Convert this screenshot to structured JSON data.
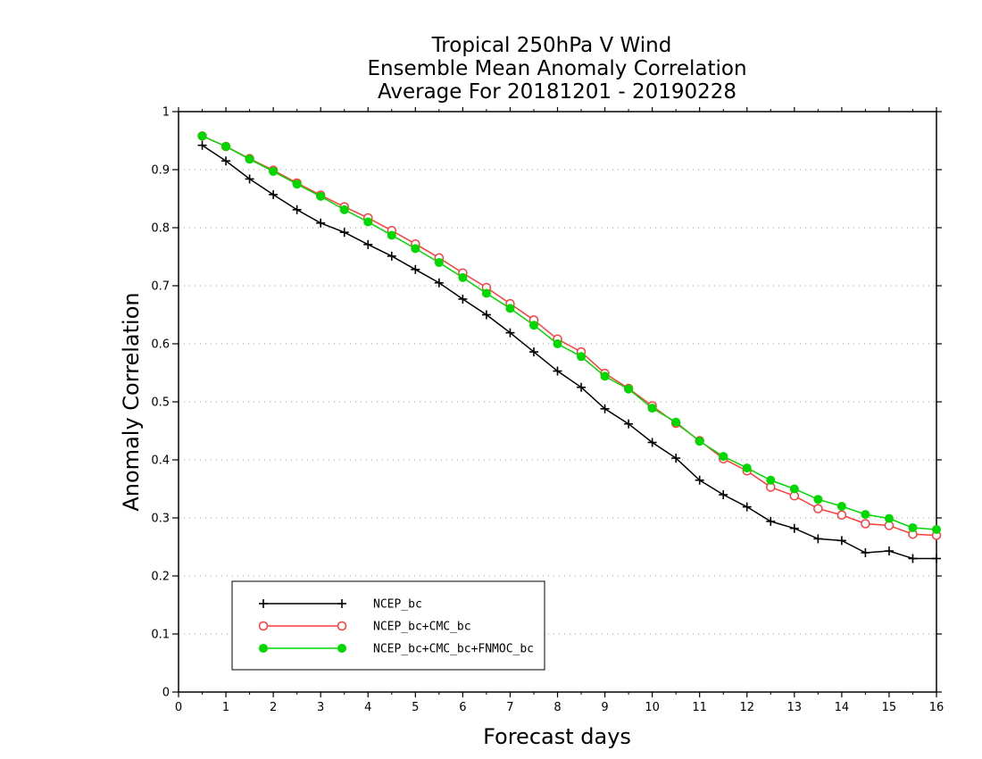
{
  "chart_data": {
    "type": "line",
    "title": [
      "Tropical 250hPa V Wind",
      "Ensemble Mean Anomaly Correlation",
      "Average For 20181201 - 20190228"
    ],
    "xlabel": "Forecast days",
    "ylabel": "Anomaly Correlation",
    "xlim": [
      0,
      16
    ],
    "ylim": [
      0,
      1
    ],
    "xticks": [
      "0",
      "1",
      "2",
      "3",
      "4",
      "5",
      "6",
      "7",
      "8",
      "9",
      "10",
      "11",
      "12",
      "13",
      "14",
      "15",
      "16"
    ],
    "yticks": [
      "0",
      "0.1",
      "0.2",
      "0.3",
      "0.4",
      "0.5",
      "0.6",
      "0.7",
      "0.8",
      "0.9",
      "1"
    ],
    "grid": "horizontal dotted",
    "legend_position": "bottom-left",
    "x": [
      0.5,
      1,
      1.5,
      2,
      2.5,
      3,
      3.5,
      4,
      4.5,
      5,
      5.5,
      6,
      6.5,
      7,
      7.5,
      8,
      8.5,
      9,
      9.5,
      10,
      10.5,
      11,
      11.5,
      12,
      12.5,
      13,
      13.5,
      14,
      14.5,
      15,
      15.5,
      16
    ],
    "series": [
      {
        "name": "NCEP_bc",
        "color": "#000000",
        "marker": "plus",
        "values": [
          0.942,
          0.915,
          0.884,
          0.857,
          0.831,
          0.808,
          0.792,
          0.771,
          0.751,
          0.728,
          0.705,
          0.677,
          0.65,
          0.619,
          0.586,
          0.553,
          0.525,
          0.488,
          0.462,
          0.43,
          0.403,
          0.365,
          0.34,
          0.319,
          0.294,
          0.282,
          0.264,
          0.261,
          0.24,
          0.243,
          0.23,
          0.23
        ]
      },
      {
        "name": "NCEP_bc+CMC_bc",
        "color": "#ff3b3b",
        "marker": "open-circle",
        "values": [
          0.958,
          0.94,
          0.919,
          0.899,
          0.877,
          0.856,
          0.836,
          0.817,
          0.795,
          0.772,
          0.748,
          0.722,
          0.697,
          0.669,
          0.641,
          0.608,
          0.586,
          0.549,
          0.523,
          0.493,
          0.463,
          0.433,
          0.402,
          0.381,
          0.353,
          0.338,
          0.316,
          0.305,
          0.29,
          0.287,
          0.272,
          0.27
        ]
      },
      {
        "name": "NCEP_bc+CMC_bc+FNMOC_bc",
        "color": "#00d800",
        "marker": "filled-circle",
        "values": [
          0.958,
          0.94,
          0.918,
          0.897,
          0.875,
          0.854,
          0.831,
          0.81,
          0.787,
          0.764,
          0.74,
          0.714,
          0.687,
          0.661,
          0.632,
          0.6,
          0.578,
          0.544,
          0.522,
          0.489,
          0.465,
          0.432,
          0.406,
          0.386,
          0.365,
          0.35,
          0.332,
          0.32,
          0.306,
          0.299,
          0.283,
          0.28
        ]
      }
    ]
  }
}
